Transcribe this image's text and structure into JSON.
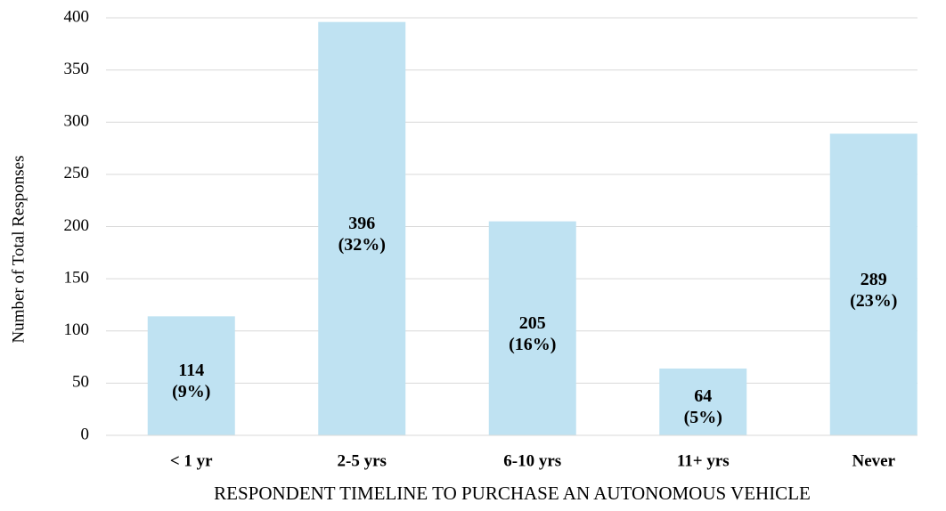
{
  "chart_data": {
    "type": "bar",
    "categories": [
      "< 1 yr",
      "2-5 yrs",
      "6-10 yrs",
      "11+ yrs",
      "Never"
    ],
    "values": [
      114,
      396,
      205,
      64,
      289
    ],
    "value_labels": [
      "114\n(9%)",
      "396\n(32%)",
      "205\n(16%)",
      "64\n(5%)",
      "289\n(23%)"
    ],
    "color": "#bfe2f2",
    "ylabel": "Number of Total Responses",
    "xlabel": "RESPONDENT TIMELINE TO PURCHASE AN AUTONOMOUS VEHICLE",
    "ylim": [
      0,
      400
    ],
    "yticks": [
      0,
      50,
      100,
      150,
      200,
      250,
      300,
      350,
      400
    ],
    "grid": true
  }
}
